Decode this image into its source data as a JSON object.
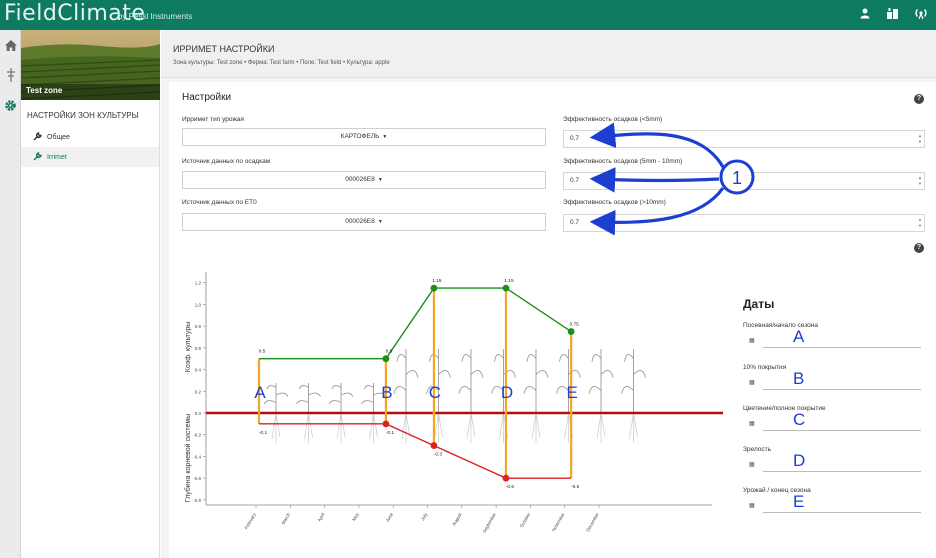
{
  "app": {
    "brand": "FieldClimate",
    "brand_sub": "by Pessl Instruments",
    "top_icons": [
      "user-icon",
      "station-icon",
      "broadcast-icon"
    ],
    "accent": "#0e7a5f"
  },
  "nav_icons": [
    "home-icon",
    "antenna-icon",
    "gear-icon"
  ],
  "sidebar": {
    "zone_name": "Test zone",
    "section_title": "НАСТРОЙКИ ЗОН КУЛЬТУРЫ",
    "items": [
      {
        "label": "Общее",
        "icon": "wrench-icon",
        "active": false
      },
      {
        "label": "Irrimet",
        "icon": "wrench-icon",
        "active": true
      }
    ]
  },
  "header": {
    "title": "ИРРИМЕТ НАСТРОЙКИ",
    "breadcrumb": "Зона культуры: Test zone • Ферма: Test farm • Поле: Test field • Культура: apple"
  },
  "settings": {
    "title": "Настройки",
    "crop_type_label": "Ирримет тип урожая",
    "crop_type_value": "КАРТОФЕЛЬ",
    "rain_source_label": "Источник данных по осадкам",
    "rain_source_value": "000026E8",
    "et0_source_label": "Источник данных по ET0",
    "et0_source_value": "000026E8",
    "eff_lt5_label": "Эффективность осадков (<5mm)",
    "eff_lt5_value": "0.7",
    "eff_5_10_label": "Эффективность осадков (5mm - 10mm)",
    "eff_5_10_value": "0.7",
    "eff_gt10_label": "Эффективность осадков (>10mm)",
    "eff_gt10_value": "0.7",
    "callout_number": "1"
  },
  "chart_data": {
    "type": "line",
    "ylabel_top": "Коэф. культуры",
    "ylabel_bottom": "Глубина корневой системы",
    "y_ticks": [
      "1.2",
      "1.0",
      "0.8",
      "0.6",
      "0.4",
      "0.2",
      "0.0",
      "-0.2",
      "-0.4",
      "-0.6",
      "-0.8"
    ],
    "ylim": [
      -0.8,
      1.3
    ],
    "x_ticks": [
      "February",
      "March",
      "April",
      "May",
      "June",
      "July",
      "August",
      "September",
      "October",
      "November",
      "December"
    ],
    "series": [
      {
        "values": [
          0.5,
          0.5,
          1.15,
          1.15,
          0.75
        ],
        "color": "#1a8f1a"
      },
      {
        "values": [
          -0.1,
          -0.1,
          -0.3,
          -0.6,
          -0.6
        ],
        "color": "#dd2222"
      }
    ],
    "stage_x": [
      0,
      3.7,
      5.1,
      7.2,
      9.1
    ],
    "value_labels_top": [
      "0.5",
      "0.5",
      "1.15",
      "1.15",
      "0.75"
    ],
    "value_labels_bottom": [
      "-0.1",
      "-0.1",
      "-0.3",
      "-0.6",
      "-0.6"
    ],
    "stage_letters": [
      "A",
      "B",
      "C",
      "D",
      "E"
    ]
  },
  "dates": {
    "title": "Даты",
    "items": [
      {
        "label": "Посевная/начало сезона",
        "letter": "A"
      },
      {
        "label": "10% покрытия",
        "letter": "B"
      },
      {
        "label": "Цветение/полное покрытие",
        "letter": "C"
      },
      {
        "label": "Зрелость",
        "letter": "D"
      },
      {
        "label": "Урожай / конец сезона",
        "letter": "E"
      }
    ]
  }
}
